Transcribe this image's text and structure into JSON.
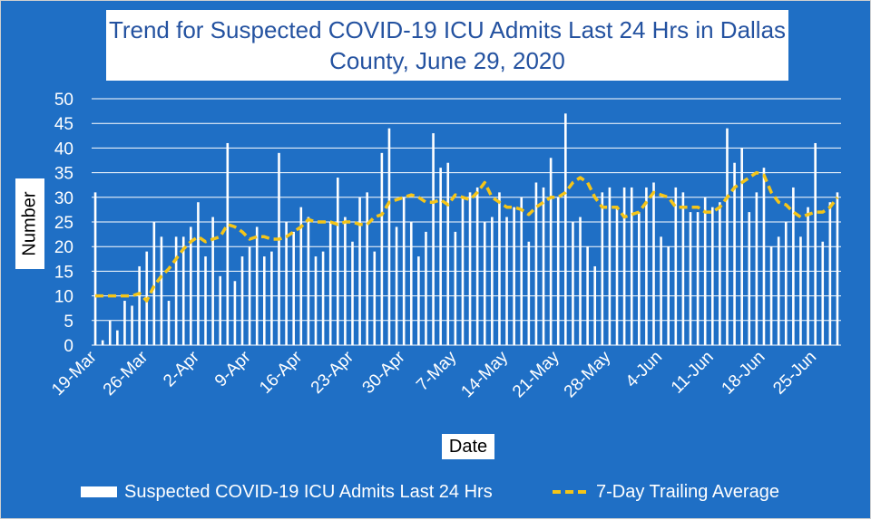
{
  "chart_data": {
    "type": "bar",
    "title_lines": [
      "Trend for Suspected COVID-19 ICU Admits Last 24 Hrs in Dallas",
      "County, June 29, 2020"
    ],
    "xlabel": "Date",
    "ylabel": "Number",
    "ylim": [
      0,
      50
    ],
    "yticks": [
      0,
      5,
      10,
      15,
      20,
      25,
      30,
      35,
      40,
      45,
      50
    ],
    "grid": true,
    "legend_position": "bottom",
    "start_date": "19-Mar",
    "xtick_labels": [
      "19-Mar",
      "26-Mar",
      "2-Apr",
      "9-Apr",
      "16-Apr",
      "23-Apr",
      "30-Apr",
      "7-May",
      "14-May",
      "21-May",
      "28-May",
      "4-Jun",
      "11-Jun",
      "18-Jun",
      "25-Jun"
    ],
    "series": [
      {
        "name": "Suspected COVID-19 ICU Admits Last 24 Hrs",
        "type": "bar",
        "color": "#ffffff",
        "values": [
          31,
          1,
          5,
          3,
          9,
          8,
          16,
          19,
          25,
          22,
          9,
          22,
          22,
          24,
          29,
          18,
          26,
          14,
          41,
          13,
          18,
          20,
          24,
          18,
          19,
          39,
          25,
          23,
          28,
          26,
          18,
          19,
          25,
          34,
          26,
          21,
          30,
          31,
          19,
          39,
          44,
          24,
          30,
          25,
          18,
          23,
          43,
          36,
          37,
          23,
          30,
          31,
          32,
          25,
          26,
          31,
          26,
          28,
          30,
          21,
          33,
          32,
          38,
          30,
          47,
          25,
          26,
          20,
          16,
          31,
          32,
          28,
          32,
          32,
          27,
          32,
          33,
          22,
          20,
          32,
          31,
          27,
          27,
          30,
          28,
          29,
          44,
          37,
          40,
          27,
          31,
          36,
          20,
          22,
          25,
          32,
          22,
          28,
          41,
          21,
          29,
          31
        ]
      },
      {
        "name": "7-Day Trailing Average",
        "type": "line",
        "style": "dashed",
        "color": "#f5c518",
        "values": [
          10,
          10,
          10,
          10,
          10,
          10,
          10.5,
          9,
          12,
          14,
          15.5,
          17.5,
          19.5,
          21,
          22,
          21,
          21.5,
          22,
          24.5,
          24,
          23,
          21.5,
          22,
          22,
          21.5,
          21.5,
          22,
          23,
          24,
          25.5,
          25,
          25,
          25,
          24.5,
          25,
          25,
          24.5,
          24.5,
          26,
          26.5,
          29,
          29.5,
          30,
          30.5,
          30,
          29,
          29,
          29.5,
          28.5,
          30.5,
          30,
          29.5,
          31,
          33,
          30,
          29,
          28,
          28,
          27.5,
          26.5,
          28,
          29,
          30,
          30,
          31,
          33,
          34,
          33,
          30,
          28,
          28,
          28,
          26,
          26.5,
          27,
          29,
          31,
          30.5,
          30,
          28,
          28,
          28,
          28,
          27,
          27,
          28,
          30,
          32,
          33,
          34,
          35,
          34.5,
          31,
          29,
          28.5,
          27,
          26,
          26.5,
          27,
          27,
          28,
          30
        ]
      }
    ]
  }
}
